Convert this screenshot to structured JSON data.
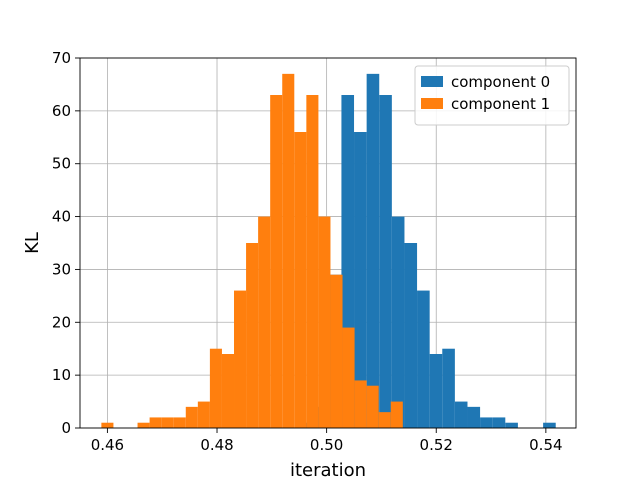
{
  "chart_data": {
    "type": "histogram",
    "xlabel": "iteration",
    "ylabel": "KL",
    "xlim": [
      0.455,
      0.5455
    ],
    "ylim": [
      0,
      70
    ],
    "grid": true,
    "legend_position": "top-right",
    "x_ticks": [
      0.46,
      0.48,
      0.5,
      0.52,
      0.54
    ],
    "x_tick_labels": [
      "0.46",
      "0.48",
      "0.50",
      "0.52",
      "0.54"
    ],
    "y_ticks": [
      0,
      10,
      20,
      30,
      40,
      50,
      60,
      70
    ],
    "y_tick_labels": [
      "0",
      "10",
      "20",
      "30",
      "40",
      "50",
      "60",
      "70"
    ],
    "series": [
      {
        "name": "component 0",
        "color": "#1f77b4",
        "bins": [
          [
            0.4935,
            0.4958,
            0
          ],
          [
            0.4958,
            0.4981,
            1
          ],
          [
            0.4981,
            0.5004,
            4
          ],
          [
            0.5004,
            0.5027,
            29
          ],
          [
            0.5027,
            0.505,
            63
          ],
          [
            0.505,
            0.5073,
            56
          ],
          [
            0.5073,
            0.5096,
            67
          ],
          [
            0.5096,
            0.5119,
            63
          ],
          [
            0.5119,
            0.5142,
            40
          ],
          [
            0.5142,
            0.5165,
            35
          ],
          [
            0.5165,
            0.5188,
            26
          ],
          [
            0.5188,
            0.5211,
            14
          ],
          [
            0.5211,
            0.5234,
            15
          ],
          [
            0.5234,
            0.5257,
            5
          ],
          [
            0.5257,
            0.528,
            4
          ],
          [
            0.528,
            0.5303,
            2
          ],
          [
            0.5303,
            0.5326,
            2
          ],
          [
            0.5326,
            0.5349,
            1
          ],
          [
            0.5349,
            0.5372,
            0
          ],
          [
            0.5372,
            0.5395,
            0
          ],
          [
            0.5395,
            0.5418,
            1
          ]
        ]
      },
      {
        "name": "component 1",
        "color": "#ff7f0e",
        "bins": [
          [
            0.4589,
            0.4611,
            1
          ],
          [
            0.4611,
            0.4633,
            0
          ],
          [
            0.4633,
            0.4655,
            0
          ],
          [
            0.4655,
            0.4677,
            1
          ],
          [
            0.4677,
            0.4699,
            2
          ],
          [
            0.4699,
            0.4721,
            2
          ],
          [
            0.4721,
            0.4743,
            2
          ],
          [
            0.4743,
            0.4765,
            4
          ],
          [
            0.4765,
            0.4787,
            5
          ],
          [
            0.4787,
            0.4809,
            15
          ],
          [
            0.4809,
            0.4831,
            14
          ],
          [
            0.4831,
            0.4853,
            26
          ],
          [
            0.4853,
            0.4875,
            35
          ],
          [
            0.4875,
            0.4897,
            40
          ],
          [
            0.4897,
            0.4919,
            63
          ],
          [
            0.4919,
            0.4941,
            67
          ],
          [
            0.4941,
            0.4963,
            56
          ],
          [
            0.4963,
            0.4985,
            63
          ],
          [
            0.4985,
            0.5007,
            40
          ],
          [
            0.5007,
            0.5029,
            29
          ],
          [
            0.5029,
            0.5051,
            19
          ],
          [
            0.5051,
            0.5073,
            9
          ],
          [
            0.5073,
            0.5095,
            8
          ],
          [
            0.5095,
            0.5117,
            3
          ],
          [
            0.5117,
            0.5139,
            5
          ]
        ]
      }
    ]
  }
}
